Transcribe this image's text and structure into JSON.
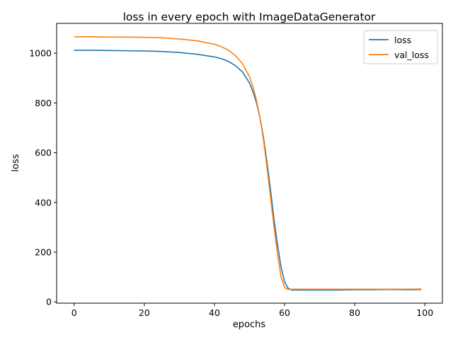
{
  "chart_data": {
    "type": "line",
    "title": "loss in every epoch with ImageDataGenerator",
    "xlabel": "epochs",
    "ylabel": "loss",
    "xlim": [
      -5,
      105
    ],
    "ylim": [
      -5,
      1120
    ],
    "xticks": [
      0,
      20,
      40,
      60,
      80,
      100
    ],
    "yticks": [
      0,
      200,
      400,
      600,
      800,
      1000
    ],
    "grid": false,
    "legend_position": "top-right",
    "series": [
      {
        "name": "loss",
        "color": "#1f77b4",
        "x": [
          0,
          5,
          10,
          15,
          20,
          25,
          30,
          35,
          40,
          42,
          44,
          46,
          48,
          50,
          51,
          52,
          53,
          54,
          55,
          56,
          57,
          58,
          59,
          60,
          61,
          62,
          65,
          70,
          75,
          80,
          85,
          90,
          95,
          99
        ],
        "y": [
          1012,
          1012,
          1011,
          1010,
          1009,
          1007,
          1003,
          996,
          985,
          978,
          967,
          950,
          925,
          880,
          845,
          800,
          740,
          660,
          560,
          450,
          330,
          230,
          140,
          80,
          55,
          48,
          48,
          48,
          48,
          49,
          49,
          50,
          49,
          50
        ]
      },
      {
        "name": "val_loss",
        "color": "#ff7f0e",
        "x": [
          0,
          5,
          10,
          15,
          20,
          25,
          30,
          35,
          40,
          42,
          44,
          46,
          48,
          50,
          51,
          52,
          53,
          54,
          55,
          56,
          57,
          58,
          59,
          60,
          61,
          62,
          65,
          70,
          75,
          80,
          85,
          90,
          95,
          99
        ],
        "y": [
          1066,
          1066,
          1065,
          1065,
          1064,
          1062,
          1057,
          1050,
          1036,
          1026,
          1012,
          990,
          958,
          905,
          865,
          810,
          740,
          650,
          540,
          420,
          300,
          190,
          100,
          58,
          50,
          51,
          51,
          51,
          51,
          51,
          51,
          51,
          51,
          52
        ]
      }
    ]
  }
}
